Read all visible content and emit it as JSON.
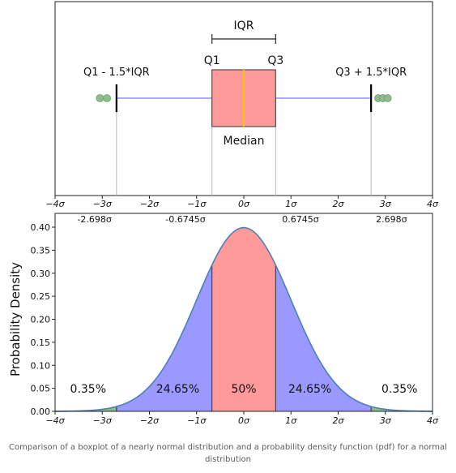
{
  "caption": "Comparison of a boxplot of a nearly normal distribution and a probability density function (pdf) for a normal distribution",
  "chart_data": [
    {
      "type": "boxplot",
      "x_ticks": [
        {
          "value": -4,
          "label": "−4σ"
        },
        {
          "value": -3,
          "label": "−3σ"
        },
        {
          "value": -2,
          "label": "−2σ"
        },
        {
          "value": -1,
          "label": "−1σ"
        },
        {
          "value": 0,
          "label": "0σ"
        },
        {
          "value": 1,
          "label": "1σ"
        },
        {
          "value": 2,
          "label": "2σ"
        },
        {
          "value": 3,
          "label": "3σ"
        },
        {
          "value": 4,
          "label": "4σ"
        }
      ],
      "xlim": [
        -4,
        4
      ],
      "box": {
        "q1": -0.6745,
        "median": 0,
        "q3": 0.6745,
        "whisker_low": -2.698,
        "whisker_high": 2.698
      },
      "outliers": [
        -3.05,
        -2.9,
        2.85,
        2.95,
        3.05
      ],
      "labels": {
        "iqr": "IQR",
        "q1": "Q1",
        "q3": "Q3",
        "median": "Median",
        "lower_fence": "Q1 - 1.5*IQR",
        "upper_fence": "Q3 + 1.5*IQR"
      },
      "colors": {
        "box_fill": "#ff9a9a",
        "median_line": "#f5c400",
        "whisker": "#7b7bf0",
        "outlier": "#8fbc8f"
      }
    },
    {
      "type": "area",
      "function": "normal_pdf",
      "mean": 0,
      "sd": 1,
      "xlim": [
        -4,
        4
      ],
      "ylim": [
        0,
        0.4
      ],
      "ylabel": "Probability Density",
      "y_ticks": [
        {
          "value": 0,
          "label": "0.00"
        },
        {
          "value": 0.05,
          "label": "0.05"
        },
        {
          "value": 0.1,
          "label": "0.10"
        },
        {
          "value": 0.15,
          "label": "0.15"
        },
        {
          "value": 0.2,
          "label": "0.20"
        },
        {
          "value": 0.25,
          "label": "0.25"
        },
        {
          "value": 0.3,
          "label": "0.30"
        },
        {
          "value": 0.35,
          "label": "0.35"
        },
        {
          "value": 0.4,
          "label": "0.40"
        }
      ],
      "x_ticks": [
        {
          "value": -4,
          "label": "−4σ"
        },
        {
          "value": -3,
          "label": "−3σ"
        },
        {
          "value": -2,
          "label": "−2σ"
        },
        {
          "value": -1,
          "label": "−1σ"
        },
        {
          "value": 0,
          "label": "0σ"
        },
        {
          "value": 1,
          "label": "1σ"
        },
        {
          "value": 2,
          "label": "2σ"
        },
        {
          "value": 3,
          "label": "3σ"
        },
        {
          "value": 4,
          "label": "4σ"
        }
      ],
      "reference_lines": [
        {
          "value": -2.698,
          "label": "-2.698σ"
        },
        {
          "value": -0.6745,
          "label": "-0.6745σ"
        },
        {
          "value": 0.6745,
          "label": "0.6745σ"
        },
        {
          "value": 2.698,
          "label": "2.698σ"
        }
      ],
      "regions": [
        {
          "from": -4,
          "to": -2.698,
          "label": "0.35%",
          "color": "#8fbc8f"
        },
        {
          "from": -2.698,
          "to": -0.6745,
          "label": "24.65%",
          "color": "#9999ff"
        },
        {
          "from": -0.6745,
          "to": 0.6745,
          "label": "50%",
          "color": "#ff9a9a"
        },
        {
          "from": 0.6745,
          "to": 2.698,
          "label": "24.65%",
          "color": "#9999ff"
        },
        {
          "from": 2.698,
          "to": 4,
          "label": "0.35%",
          "color": "#8fbc8f"
        }
      ],
      "colors": {
        "curve": "#4f7fb5"
      }
    }
  ]
}
